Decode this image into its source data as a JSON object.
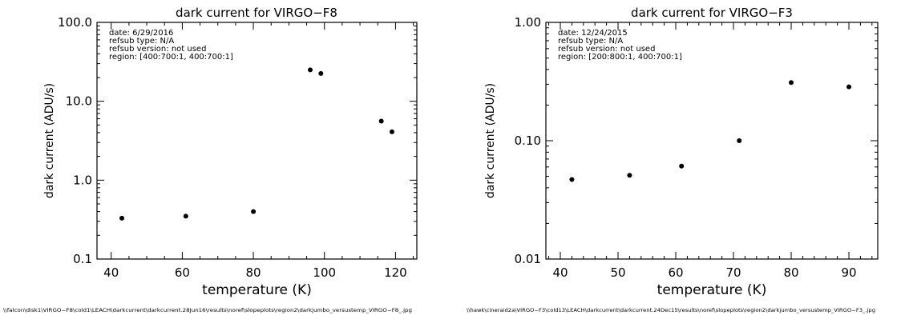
{
  "chart_data": [
    {
      "type": "scatter",
      "title": "dark current for VIRGO−F8",
      "xlabel": "temperature (K)",
      "ylabel": "dark current (ADU/s)",
      "xlim": [
        36,
        126
      ],
      "ylim": [
        0.1,
        100.0
      ],
      "yscale": "log",
      "xticks": [
        40,
        60,
        80,
        100,
        120
      ],
      "xtick_labels": [
        "40",
        "60",
        "80",
        "100",
        "120"
      ],
      "yticks": [
        0.1,
        1.0,
        10.0,
        100.0
      ],
      "ytick_labels": [
        "0.1",
        "1.0",
        "10.0",
        "100.0"
      ],
      "annotations": [
        "date: 6/29/2016",
        "refsub type: N/A",
        "refsub version: not used",
        "region: [400:700:1, 400:700:1]"
      ],
      "footer": "\\\\falcon\\disk1\\VIRGO−F8\\cold1\\LEACH\\darkcurrent\\darkcurrent.28Jun16\\results\\noref\\slopeplots\\region2\\darkjumbo_versustemp_VIRGO−F8_.jpg",
      "x": [
        43,
        61,
        80,
        96,
        99,
        116,
        119
      ],
      "y": [
        0.33,
        0.35,
        0.4,
        25,
        22.5,
        5.6,
        4.1
      ]
    },
    {
      "type": "scatter",
      "title": "dark current for VIRGO−F3",
      "xlabel": "temperature (K)",
      "ylabel": "dark current (ADU/s)",
      "xlim": [
        37.5,
        95
      ],
      "ylim": [
        0.01,
        1.0
      ],
      "yscale": "log",
      "xticks": [
        40,
        50,
        60,
        70,
        80,
        90
      ],
      "xtick_labels": [
        "40",
        "50",
        "60",
        "70",
        "80",
        "90"
      ],
      "yticks": [
        0.01,
        0.1,
        1.0
      ],
      "ytick_labels": [
        "0.01",
        "0.10",
        "1.00"
      ],
      "annotations": [
        "date: 12/24/2015",
        "refsub type: N/A",
        "refsub version: not used",
        "region: [200:800:1, 400:700:1]"
      ],
      "footer": "\\\\hawk\\cineraid2a\\VIRGO−F3\\cold13\\LEACH\\darkcurrent\\darkcurrent.24Dec15\\results\\noref\\slopeplots\\region2\\darkjumbo_versustemp_VIRGO−F3_.jpg",
      "x": [
        42,
        52,
        61,
        71,
        80,
        90
      ],
      "y": [
        0.047,
        0.051,
        0.061,
        0.1,
        0.31,
        0.285
      ]
    }
  ]
}
